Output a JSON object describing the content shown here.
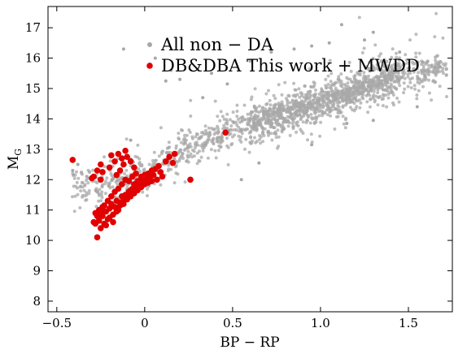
{
  "chart_data": {
    "type": "scatter",
    "title": "",
    "xlabel": "BP − RP",
    "ylabel_main": "M",
    "ylabel_sub": "G",
    "xlim": [
      -0.55,
      1.75
    ],
    "ylim": [
      17.7,
      7.65
    ],
    "y_inverted": true,
    "grid": false,
    "legend_position": "top-center",
    "x_ticks": [
      {
        "value": -0.5,
        "label": "−0.5"
      },
      {
        "value": 0,
        "label": "0"
      },
      {
        "value": 0.5,
        "label": "0.5"
      },
      {
        "value": 1.0,
        "label": "1.0"
      },
      {
        "value": 1.5,
        "label": "1.5"
      }
    ],
    "y_ticks": [
      {
        "value": 8,
        "label": "8"
      },
      {
        "value": 9,
        "label": "9"
      },
      {
        "value": 10,
        "label": "10"
      },
      {
        "value": 11,
        "label": "11"
      },
      {
        "value": 12,
        "label": "12"
      },
      {
        "value": 13,
        "label": "13"
      },
      {
        "value": 14,
        "label": "14"
      },
      {
        "value": 15,
        "label": "15"
      },
      {
        "value": 16,
        "label": "16"
      },
      {
        "value": 17,
        "label": "17"
      }
    ],
    "series": [
      {
        "name": "All non − DA",
        "color": "#a8a8a8",
        "marker": "small-dot",
        "sequence": {
          "x_range": [
            -0.42,
            1.72
          ],
          "y_at_x": [
            [
              -0.3,
              11.8
            ],
            [
              0.0,
              12.2
            ],
            [
              0.2,
              12.9
            ],
            [
              0.5,
              13.7
            ],
            [
              0.8,
              14.15
            ],
            [
              1.0,
              14.55
            ],
            [
              1.2,
              14.95
            ],
            [
              1.4,
              15.35
            ],
            [
              1.7,
              15.75
            ]
          ],
          "spread_mag": 0.28,
          "approx_count": 1800
        },
        "outliers": [
          {
            "x": -0.41,
            "y": 12.3
          },
          {
            "x": -0.38,
            "y": 12.5
          },
          {
            "x": -0.12,
            "y": 16.3
          },
          {
            "x": 0.03,
            "y": 15.8
          },
          {
            "x": 0.06,
            "y": 16.0
          },
          {
            "x": 0.12,
            "y": 15.25
          },
          {
            "x": 0.15,
            "y": 15.6
          },
          {
            "x": 0.2,
            "y": 15.3
          },
          {
            "x": 0.33,
            "y": 14.7
          },
          {
            "x": 0.38,
            "y": 15.5
          },
          {
            "x": 0.47,
            "y": 15.15
          },
          {
            "x": 0.6,
            "y": 15.9
          },
          {
            "x": 0.72,
            "y": 16.2
          },
          {
            "x": 0.85,
            "y": 16.3
          },
          {
            "x": 0.95,
            "y": 16.4
          },
          {
            "x": 1.05,
            "y": 16.5
          },
          {
            "x": 1.12,
            "y": 17.1
          },
          {
            "x": 1.25,
            "y": 16.6
          },
          {
            "x": 1.3,
            "y": 16.85
          },
          {
            "x": 1.45,
            "y": 16.2
          },
          {
            "x": -0.08,
            "y": 13.3
          },
          {
            "x": 0.55,
            "y": 12.0
          },
          {
            "x": 0.65,
            "y": 12.55
          },
          {
            "x": 0.95,
            "y": 13.15
          },
          {
            "x": 1.15,
            "y": 13.85
          },
          {
            "x": 1.3,
            "y": 13.95
          },
          {
            "x": 1.55,
            "y": 14.4
          }
        ]
      },
      {
        "name": "DB&DBA This work + MWDD",
        "color": "#e00000",
        "marker": "dot",
        "points": [
          {
            "x": -0.27,
            "y": 10.1
          },
          {
            "x": -0.25,
            "y": 10.4
          },
          {
            "x": -0.28,
            "y": 10.55
          },
          {
            "x": -0.26,
            "y": 10.65
          },
          {
            "x": -0.23,
            "y": 10.55
          },
          {
            "x": -0.24,
            "y": 10.8
          },
          {
            "x": -0.21,
            "y": 10.7
          },
          {
            "x": -0.22,
            "y": 10.95
          },
          {
            "x": -0.2,
            "y": 11.05
          },
          {
            "x": -0.18,
            "y": 10.85
          },
          {
            "x": -0.19,
            "y": 11.2
          },
          {
            "x": -0.17,
            "y": 11.1
          },
          {
            "x": -0.16,
            "y": 11.3
          },
          {
            "x": -0.15,
            "y": 11.0
          },
          {
            "x": -0.14,
            "y": 11.25
          },
          {
            "x": -0.13,
            "y": 11.45
          },
          {
            "x": -0.12,
            "y": 11.2
          },
          {
            "x": -0.11,
            "y": 11.5
          },
          {
            "x": -0.1,
            "y": 11.35
          },
          {
            "x": -0.09,
            "y": 11.6
          },
          {
            "x": -0.08,
            "y": 11.45
          },
          {
            "x": -0.07,
            "y": 11.7
          },
          {
            "x": -0.06,
            "y": 11.55
          },
          {
            "x": -0.05,
            "y": 11.8
          },
          {
            "x": -0.04,
            "y": 11.65
          },
          {
            "x": -0.03,
            "y": 11.9
          },
          {
            "x": -0.02,
            "y": 11.75
          },
          {
            "x": -0.01,
            "y": 12.0
          },
          {
            "x": 0.0,
            "y": 11.85
          },
          {
            "x": 0.01,
            "y": 12.05
          },
          {
            "x": 0.02,
            "y": 11.9
          },
          {
            "x": 0.03,
            "y": 12.1
          },
          {
            "x": 0.04,
            "y": 11.95
          },
          {
            "x": 0.05,
            "y": 12.15
          },
          {
            "x": 0.07,
            "y": 12.0
          },
          {
            "x": 0.09,
            "y": 12.25
          },
          {
            "x": -0.29,
            "y": 10.6
          },
          {
            "x": -0.27,
            "y": 10.8
          },
          {
            "x": -0.25,
            "y": 10.95
          },
          {
            "x": -0.23,
            "y": 11.15
          },
          {
            "x": -0.21,
            "y": 11.3
          },
          {
            "x": -0.19,
            "y": 11.45
          },
          {
            "x": -0.17,
            "y": 11.6
          },
          {
            "x": -0.15,
            "y": 11.7
          },
          {
            "x": -0.13,
            "y": 11.85
          },
          {
            "x": -0.11,
            "y": 12.0
          },
          {
            "x": -0.09,
            "y": 11.95
          },
          {
            "x": -0.07,
            "y": 12.1
          },
          {
            "x": -0.05,
            "y": 12.2
          },
          {
            "x": -0.22,
            "y": 10.5
          },
          {
            "x": -0.2,
            "y": 10.75
          },
          {
            "x": -0.16,
            "y": 10.95
          },
          {
            "x": -0.14,
            "y": 11.15
          },
          {
            "x": -0.12,
            "y": 11.3
          },
          {
            "x": -0.1,
            "y": 11.5
          },
          {
            "x": -0.08,
            "y": 11.65
          },
          {
            "x": -0.06,
            "y": 11.85
          },
          {
            "x": -0.04,
            "y": 11.95
          },
          {
            "x": -0.02,
            "y": 12.1
          },
          {
            "x": 0.0,
            "y": 12.15
          },
          {
            "x": 0.02,
            "y": 12.2
          },
          {
            "x": 0.04,
            "y": 12.3
          },
          {
            "x": -0.18,
            "y": 10.6
          },
          {
            "x": -0.24,
            "y": 11.1
          },
          {
            "x": -0.26,
            "y": 11.0
          },
          {
            "x": -0.28,
            "y": 10.9
          },
          {
            "x": -0.3,
            "y": 12.05
          },
          {
            "x": -0.29,
            "y": 12.1
          },
          {
            "x": -0.27,
            "y": 12.3
          },
          {
            "x": -0.25,
            "y": 12.0
          },
          {
            "x": -0.25,
            "y": 12.5
          },
          {
            "x": -0.24,
            "y": 12.25
          },
          {
            "x": -0.2,
            "y": 12.4
          },
          {
            "x": -0.19,
            "y": 12.8
          },
          {
            "x": -0.17,
            "y": 12.6
          },
          {
            "x": -0.15,
            "y": 12.85
          },
          {
            "x": -0.13,
            "y": 12.7
          },
          {
            "x": -0.12,
            "y": 12.5
          },
          {
            "x": -0.11,
            "y": 12.95
          },
          {
            "x": -0.1,
            "y": 12.75
          },
          {
            "x": -0.08,
            "y": 12.6
          },
          {
            "x": -0.06,
            "y": 12.4
          },
          {
            "x": -0.14,
            "y": 12.3
          },
          {
            "x": -0.16,
            "y": 12.15
          },
          {
            "x": -0.41,
            "y": 12.65
          },
          {
            "x": 0.06,
            "y": 12.35
          },
          {
            "x": 0.08,
            "y": 12.45
          },
          {
            "x": 0.1,
            "y": 12.1
          },
          {
            "x": 0.12,
            "y": 12.6
          },
          {
            "x": 0.14,
            "y": 12.75
          },
          {
            "x": 0.16,
            "y": 12.55
          },
          {
            "x": 0.17,
            "y": 12.85
          },
          {
            "x": 0.26,
            "y": 12.0
          },
          {
            "x": 0.46,
            "y": 13.55
          }
        ]
      }
    ]
  }
}
